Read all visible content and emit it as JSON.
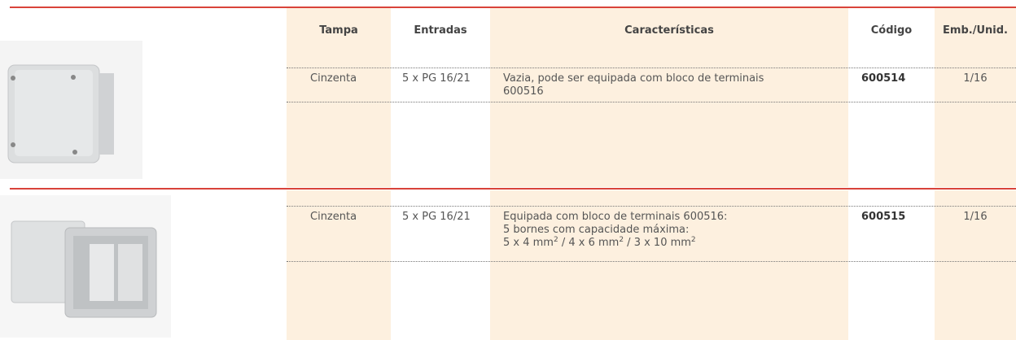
{
  "header": {
    "columns": [
      "Tampa",
      "Entradas",
      "Características",
      "Código",
      "Emb./Unid."
    ]
  },
  "rows": [
    {
      "tampa": "Cinzenta",
      "entradas": "5 x PG 16/21",
      "description": [
        "Vazia, pode ser equipada com bloco de terminais",
        "600516"
      ],
      "codigo": "600514",
      "emb": "1/16"
    },
    {
      "tampa": "Cinzenta",
      "entradas": "5 x PG 16/21",
      "description": [
        "Equipada com bloco de terminais 600516:",
        "5 bornes com capacidade máxima:"
      ],
      "capacity": [
        {
          "text": "5 x 4 mm",
          "sup": "2"
        },
        {
          "text": " / 4 x 6 mm",
          "sup": "2"
        },
        {
          "text": " / 3 x 10 mm",
          "sup": "2"
        }
      ],
      "codigo": "600515",
      "emb": "1/16"
    }
  ]
}
